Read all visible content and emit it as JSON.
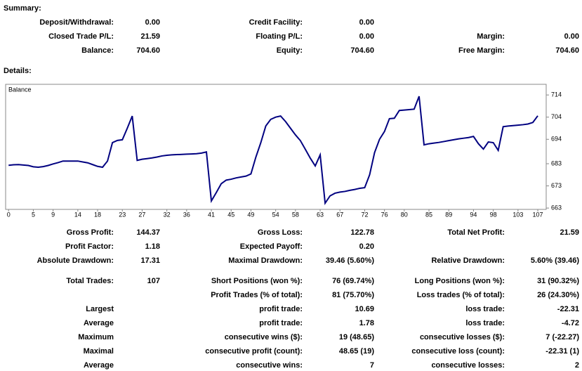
{
  "summary": {
    "title": "Summary:",
    "rows": [
      [
        "Deposit/Withdrawal:",
        "0.00",
        "Credit Facility:",
        "0.00",
        null,
        null
      ],
      [
        "Closed Trade P/L:",
        "21.59",
        "Floating P/L:",
        "0.00",
        "Margin:",
        "0.00"
      ],
      [
        "Balance:",
        "704.60",
        "Equity:",
        "704.60",
        "Free Margin:",
        "704.60"
      ]
    ]
  },
  "details": {
    "title": "Details:",
    "rows": [
      [
        "Gross Profit:",
        "144.37",
        "Gross Loss:",
        "122.78",
        "Total Net Profit:",
        "21.59"
      ],
      [
        "Profit Factor:",
        "1.18",
        "Expected Payoff:",
        "0.20",
        null,
        null
      ],
      [
        "Absolute Drawdown:",
        "17.31",
        "Maximal Drawdown:",
        "39.46 (5.60%)",
        "Relative Drawdown:",
        "5.60% (39.46)"
      ],
      [
        "Total Trades:",
        "107",
        "Short Positions (won %):",
        "76 (69.74%)",
        "Long Positions (won %):",
        "31 (90.32%)"
      ],
      [
        null,
        null,
        "Profit Trades (% of total):",
        "81 (75.70%)",
        "Loss trades (% of total):",
        "26 (24.30%)"
      ],
      [
        "Largest",
        null,
        "profit trade:",
        "10.69",
        "loss trade:",
        "-22.31"
      ],
      [
        "Average",
        null,
        "profit trade:",
        "1.78",
        "loss trade:",
        "-4.72"
      ],
      [
        "Maximum",
        null,
        "consecutive wins ($):",
        "19 (48.65)",
        "consecutive losses ($):",
        "7 (-22.27)"
      ],
      [
        "Maximal",
        null,
        "consecutive profit (count):",
        "48.65 (19)",
        "consecutive loss (count):",
        "-22.31 (1)"
      ],
      [
        "Average",
        null,
        "consecutive wins:",
        "7",
        "consecutive losses:",
        "2"
      ]
    ]
  },
  "chart_data": {
    "type": "line",
    "x": [
      0,
      1,
      2,
      3,
      4,
      5,
      6,
      7,
      8,
      9,
      10,
      11,
      12,
      13,
      14,
      15,
      16,
      17,
      18,
      19,
      20,
      21,
      22,
      23,
      24,
      25,
      26,
      27,
      28,
      29,
      30,
      31,
      32,
      33,
      34,
      35,
      36,
      37,
      38,
      39,
      40,
      41,
      42,
      43,
      44,
      45,
      46,
      47,
      48,
      49,
      50,
      51,
      52,
      53,
      54,
      55,
      56,
      57,
      58,
      59,
      60,
      61,
      62,
      63,
      64,
      65,
      66,
      67,
      68,
      69,
      70,
      71,
      72,
      73,
      74,
      75,
      76,
      77,
      78,
      79,
      80,
      81,
      82,
      83,
      84,
      85,
      86,
      87,
      88,
      89,
      90,
      91,
      92,
      93,
      94,
      95,
      96,
      97,
      98,
      99,
      100,
      101,
      102,
      103,
      104,
      105,
      106,
      107
    ],
    "series": [
      {
        "name": "Balance",
        "color": "#000080",
        "values": [
          682.3,
          682.5,
          682.6,
          682.4,
          682.2,
          681.6,
          681.4,
          681.7,
          682.2,
          682.9,
          683.5,
          684.2,
          684.2,
          684.2,
          684.2,
          683.8,
          683.4,
          682.6,
          681.8,
          681.4,
          684.2,
          692.5,
          693.5,
          693.8,
          699.0,
          704.5,
          684.5,
          685.0,
          685.3,
          685.6,
          686.0,
          686.5,
          686.8,
          687.0,
          687.1,
          687.2,
          687.3,
          687.4,
          687.5,
          687.8,
          688.3,
          666.2,
          670.0,
          674.0,
          675.6,
          676.0,
          676.6,
          677.0,
          677.4,
          678.4,
          686.0,
          692.5,
          700.0,
          703.0,
          704.0,
          704.5,
          702.0,
          699.0,
          696.0,
          693.4,
          689.5,
          685.5,
          682.0,
          687.0,
          665.2,
          668.5,
          669.7,
          670.2,
          670.5,
          671.0,
          671.4,
          671.9,
          672.2,
          678.0,
          688.0,
          694.0,
          697.5,
          703.3,
          703.5,
          707.0,
          707.2,
          707.4,
          707.6,
          713.4,
          691.5,
          692.0,
          692.3,
          692.6,
          693.0,
          693.4,
          693.8,
          694.2,
          694.5,
          694.8,
          695.3,
          692.0,
          689.6,
          692.8,
          692.5,
          689.0,
          699.7,
          700.0,
          700.2,
          700.4,
          700.6,
          700.9,
          701.6,
          704.6
        ]
      }
    ],
    "xlim": [
      -0.6,
      108.7
    ],
    "ylim": [
      662.4,
      718.8
    ],
    "xticks": [
      0,
      5,
      9,
      14,
      18,
      23,
      27,
      32,
      36,
      41,
      45,
      49,
      54,
      58,
      63,
      67,
      72,
      76,
      80,
      85,
      89,
      94,
      98,
      103,
      107
    ],
    "yticks": [
      663,
      673,
      683,
      694,
      704,
      714
    ]
  }
}
